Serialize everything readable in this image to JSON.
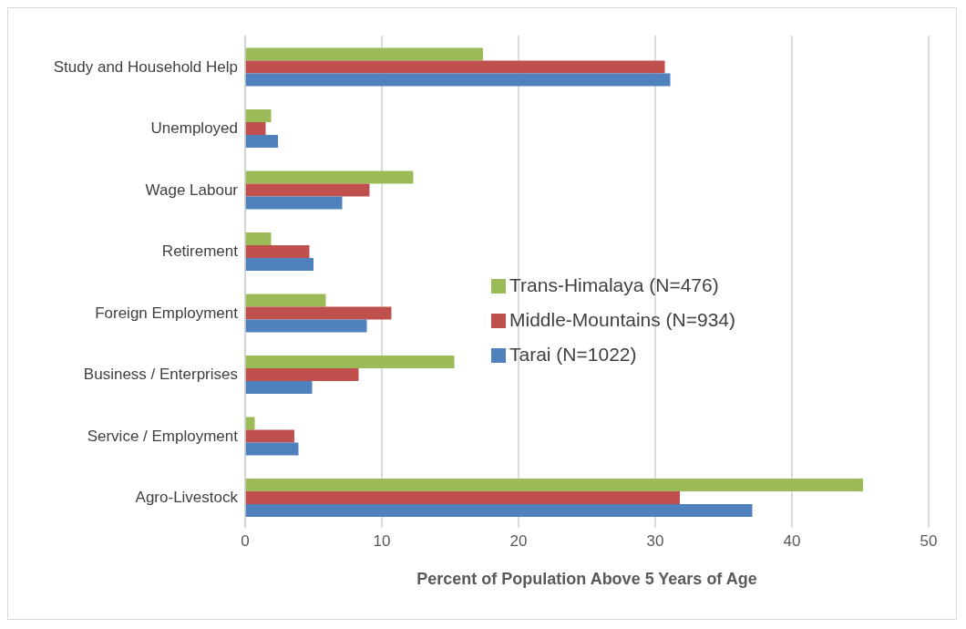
{
  "chart_data": {
    "type": "bar",
    "orientation": "horizontal",
    "xlabel": "Percent of Population Above 5 Years of Age",
    "categories": [
      "Study and Household Help",
      "Unemployed",
      "Wage Labour",
      "Retirement",
      "Foreign Employment",
      "Business / Enterprises",
      "Service / Employment",
      "Agro-Livestock"
    ],
    "series": [
      {
        "name": "Trans-Himalaya (N=476)",
        "color": "#9bbb59",
        "values": [
          17.4,
          1.9,
          12.3,
          1.9,
          5.9,
          15.3,
          0.7,
          45.2
        ]
      },
      {
        "name": "Middle-Mountains (N=934)",
        "color": "#c0504d",
        "values": [
          30.7,
          1.5,
          9.1,
          4.7,
          10.7,
          8.3,
          3.6,
          31.8
        ]
      },
      {
        "name": "Tarai (N=1022)",
        "color": "#4f81bd",
        "values": [
          31.1,
          2.4,
          7.1,
          5.0,
          8.9,
          4.9,
          3.9,
          37.1
        ]
      }
    ],
    "xlim": [
      0,
      50
    ],
    "xticks": [
      0,
      10,
      20,
      30,
      40,
      50
    ],
    "grid": "x",
    "legend": "right"
  }
}
